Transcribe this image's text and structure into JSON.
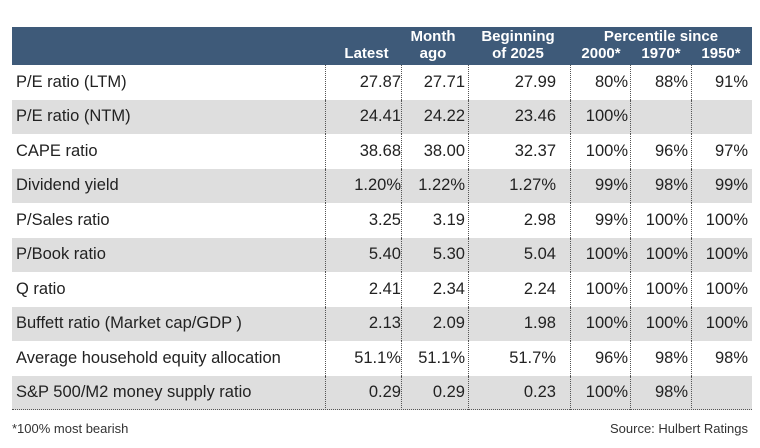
{
  "header": {
    "latest": "Latest",
    "month_ago_1": "Month",
    "month_ago_2": "ago",
    "beginning_1": "Beginning",
    "beginning_2": "of 2025",
    "percentile_title": "Percentile since",
    "p2000": "2000*",
    "p1970": "1970*",
    "p1950": "1950*"
  },
  "rows": [
    {
      "metric": "P/E ratio (LTM)",
      "latest": "27.87",
      "month_ago": "27.71",
      "beginning": "27.99",
      "p2000": "80%",
      "p1970": "88%",
      "p1950": "91%"
    },
    {
      "metric": "P/E ratio (NTM)",
      "latest": "24.41",
      "month_ago": "24.22",
      "beginning": "23.46",
      "p2000": "100%",
      "p1970": "",
      "p1950": ""
    },
    {
      "metric": "CAPE ratio",
      "latest": "38.68",
      "month_ago": "38.00",
      "beginning": "32.37",
      "p2000": "100%",
      "p1970": "96%",
      "p1950": "97%"
    },
    {
      "metric": "Dividend yield",
      "latest": "1.20%",
      "month_ago": "1.22%",
      "beginning": "1.27%",
      "p2000": "99%",
      "p1970": "98%",
      "p1950": "99%"
    },
    {
      "metric": "P/Sales ratio",
      "latest": "3.25",
      "month_ago": "3.19",
      "beginning": "2.98",
      "p2000": "99%",
      "p1970": "100%",
      "p1950": "100%"
    },
    {
      "metric": "P/Book ratio",
      "latest": "5.40",
      "month_ago": "5.30",
      "beginning": "5.04",
      "p2000": "100%",
      "p1970": "100%",
      "p1950": "100%"
    },
    {
      "metric": "Q ratio",
      "latest": "2.41",
      "month_ago": "2.34",
      "beginning": "2.24",
      "p2000": "100%",
      "p1970": "100%",
      "p1950": "100%"
    },
    {
      "metric": "Buffett ratio (Market cap/GDP )",
      "latest": "2.13",
      "month_ago": "2.09",
      "beginning": "1.98",
      "p2000": "100%",
      "p1970": "100%",
      "p1950": "100%"
    },
    {
      "metric": "Average household equity allocation",
      "latest": "51.1%",
      "month_ago": "51.1%",
      "beginning": "51.7%",
      "p2000": "96%",
      "p1970": "98%",
      "p1950": "98%"
    },
    {
      "metric": "S&P 500/M2 money supply ratio",
      "latest": "0.29",
      "month_ago": "0.29",
      "beginning": "0.23",
      "p2000": "100%",
      "p1970": "98%",
      "p1950": ""
    }
  ],
  "footer": {
    "note": "*100% most bearish",
    "source": "Source: Hulbert Ratings"
  },
  "colors": {
    "header_bg": "#3e5a79",
    "shade_bg": "#dedede"
  }
}
